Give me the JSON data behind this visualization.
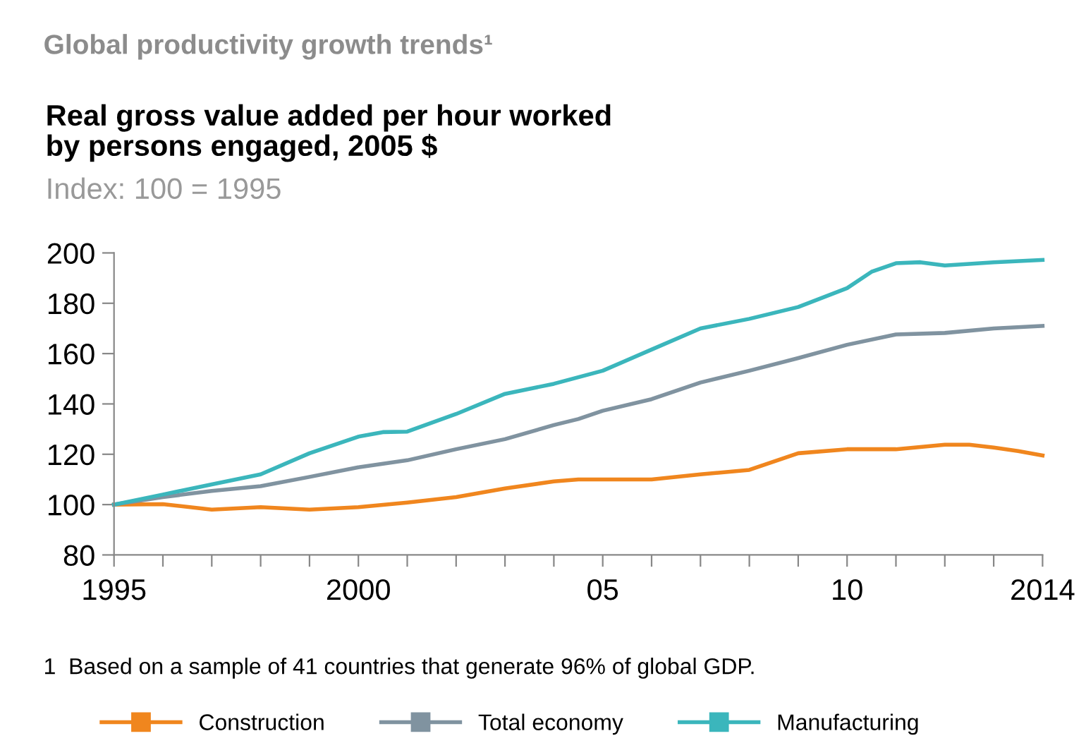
{
  "chart_data": {
    "type": "line",
    "title": "Global productivity growth trends¹",
    "subtitle": "Real gross value added per hour worked\nby persons engaged, 2005 $",
    "ylabel": "Index: 100 = 1995",
    "annotations": [
      "1  Based on a sample of 41 countries that generate 96% of global GDP."
    ],
    "series": [
      {
        "name": "Construction",
        "color": "#f0861e",
        "x": [
          1995,
          1996,
          1997,
          1998,
          1999,
          2000,
          2001,
          2002,
          2003,
          2004,
          2004.5,
          2005,
          2006,
          2007,
          2008,
          2009,
          2010,
          2011,
          2012,
          2012.5,
          2013,
          2013.5,
          2014
        ],
        "values": [
          100,
          100.2,
          98,
          99,
          98,
          99,
          100.8,
          103,
          106.4,
          109.2,
          110,
          110,
          110,
          112,
          113.8,
          120.4,
          122,
          122,
          123.8,
          123.8,
          122.7,
          121.3,
          119.5
        ]
      },
      {
        "name": "Total economy",
        "color": "#8093a0",
        "x": [
          1995,
          1996,
          1997,
          1998,
          1999,
          2000,
          2001,
          2002,
          2003,
          2004,
          2004.5,
          2005,
          2006,
          2007,
          2008,
          2009,
          2010,
          2011,
          2012,
          2013,
          2014
        ],
        "values": [
          100,
          103,
          105.4,
          107.3,
          111,
          114.8,
          117.6,
          122,
          126,
          131.6,
          134,
          137.3,
          141.9,
          148.5,
          153.2,
          158.2,
          163.5,
          167.6,
          168.2,
          170,
          171
        ]
      },
      {
        "name": "Manufacturing",
        "color": "#3bb6bc",
        "x": [
          1995,
          1996,
          1997,
          1998,
          1999,
          2000,
          2000.5,
          2001,
          2002,
          2003,
          2004,
          2004.5,
          2005,
          2006,
          2007,
          2008,
          2009,
          2010,
          2010.5,
          2011,
          2011.5,
          2012,
          2013,
          2014
        ],
        "values": [
          100,
          104,
          108,
          112,
          120.4,
          127,
          128.8,
          129,
          136,
          144,
          148,
          150.6,
          153.2,
          161.6,
          170,
          173.8,
          178.5,
          186,
          192.5,
          195.9,
          196.3,
          195,
          196.3,
          197.2
        ]
      }
    ],
    "xlim": [
      1995,
      2014
    ],
    "xticks": [
      1995,
      {
        "value": 1996,
        "label": null
      },
      {
        "value": 1997,
        "label": null
      },
      {
        "value": 1998,
        "label": null
      },
      {
        "value": 1999,
        "label": null
      },
      2000,
      {
        "value": 2001,
        "label": null
      },
      {
        "value": 2002,
        "label": null
      },
      {
        "value": 2003,
        "label": null
      },
      {
        "value": 2004,
        "label": null
      },
      {
        "value": 2005,
        "label": "05"
      },
      {
        "value": 2006,
        "label": null
      },
      {
        "value": 2007,
        "label": null
      },
      {
        "value": 2008,
        "label": null
      },
      {
        "value": 2009,
        "label": null
      },
      {
        "value": 2010,
        "label": "10"
      },
      {
        "value": 2011,
        "label": null
      },
      {
        "value": 2012,
        "label": null
      },
      {
        "value": 2013,
        "label": null
      },
      2014
    ],
    "ylim": [
      80,
      200
    ],
    "yticks": [
      80,
      100,
      120,
      140,
      160,
      180,
      200
    ],
    "grid": false,
    "legend": "bottom",
    "marker": "none",
    "line_style": "solid"
  }
}
